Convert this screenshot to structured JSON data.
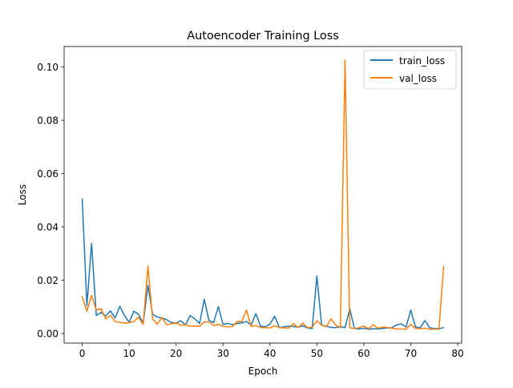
{
  "chart_data": {
    "type": "line",
    "title": "Autoencoder Training Loss",
    "xlabel": "Epoch",
    "ylabel": "Loss",
    "xlim": [
      -3.85,
      80.85
    ],
    "ylim": [
      -0.0036,
      0.1077
    ],
    "xticks": [
      0,
      10,
      20,
      30,
      40,
      50,
      60,
      70,
      80
    ],
    "xtick_labels": [
      "0",
      "10",
      "20",
      "30",
      "40",
      "50",
      "60",
      "70",
      "80"
    ],
    "yticks": [
      0.0,
      0.02,
      0.04,
      0.06,
      0.08,
      0.1
    ],
    "ytick_labels": [
      "0.00",
      "0.02",
      "0.04",
      "0.06",
      "0.08",
      "0.10"
    ],
    "grid": false,
    "legend_position": "upper right",
    "x": [
      0,
      1,
      2,
      3,
      4,
      5,
      6,
      7,
      8,
      9,
      10,
      11,
      12,
      13,
      14,
      15,
      16,
      17,
      18,
      19,
      20,
      21,
      22,
      23,
      24,
      25,
      26,
      27,
      28,
      29,
      30,
      31,
      32,
      33,
      34,
      35,
      36,
      37,
      38,
      39,
      40,
      41,
      42,
      43,
      44,
      45,
      46,
      47,
      48,
      49,
      50,
      51,
      52,
      53,
      54,
      55,
      56,
      57,
      58,
      59,
      60,
      61,
      62,
      63,
      64,
      65,
      66,
      67,
      68,
      69,
      70,
      71,
      72,
      73,
      74,
      75,
      76,
      77
    ],
    "series": [
      {
        "name": "train_loss",
        "color": "#1f77b4",
        "values": [
          0.0505,
          0.0105,
          0.0338,
          0.0068,
          0.0079,
          0.0065,
          0.0085,
          0.0058,
          0.0102,
          0.0068,
          0.0042,
          0.0084,
          0.0072,
          0.0038,
          0.0181,
          0.0072,
          0.0062,
          0.0058,
          0.0052,
          0.0041,
          0.0039,
          0.0048,
          0.0032,
          0.0067,
          0.0055,
          0.0038,
          0.0129,
          0.0049,
          0.0041,
          0.0101,
          0.0034,
          0.0038,
          0.0033,
          0.0038,
          0.004,
          0.0045,
          0.0032,
          0.0075,
          0.0028,
          0.0025,
          0.0035,
          0.0065,
          0.0022,
          0.0025,
          0.0028,
          0.0026,
          0.0024,
          0.0029,
          0.0021,
          0.0019,
          0.0216,
          0.0032,
          0.0027,
          0.0023,
          0.0022,
          0.0026,
          0.0022,
          0.0092,
          0.0019,
          0.0017,
          0.002,
          0.0016,
          0.0018,
          0.0017,
          0.0019,
          0.0021,
          0.0022,
          0.0033,
          0.0036,
          0.0024,
          0.0088,
          0.0025,
          0.0021,
          0.0049,
          0.0022,
          0.0019,
          0.0018,
          0.0022
        ]
      },
      {
        "name": "val_loss",
        "color": "#ff7f0e",
        "values": [
          0.0138,
          0.0083,
          0.0143,
          0.0088,
          0.0093,
          0.0055,
          0.0068,
          0.0045,
          0.0042,
          0.0039,
          0.0041,
          0.0045,
          0.0061,
          0.0034,
          0.0253,
          0.0055,
          0.0035,
          0.006,
          0.0033,
          0.0036,
          0.004,
          0.0031,
          0.0033,
          0.0027,
          0.0028,
          0.0027,
          0.0043,
          0.0044,
          0.003,
          0.0034,
          0.0027,
          0.0025,
          0.0026,
          0.0045,
          0.0045,
          0.0088,
          0.0026,
          0.003,
          0.0023,
          0.0022,
          0.0021,
          0.0029,
          0.0022,
          0.0021,
          0.002,
          0.0037,
          0.0022,
          0.0039,
          0.0022,
          0.0024,
          0.0048,
          0.0031,
          0.0025,
          0.0055,
          0.0031,
          0.0022,
          0.1025,
          0.0022,
          0.0019,
          0.0022,
          0.0028,
          0.0018,
          0.0033,
          0.002,
          0.0024,
          0.0023,
          0.002,
          0.0017,
          0.0017,
          0.0016,
          0.0034,
          0.0019,
          0.0018,
          0.002,
          0.0016,
          0.0017,
          0.0016,
          0.0252
        ]
      }
    ]
  }
}
